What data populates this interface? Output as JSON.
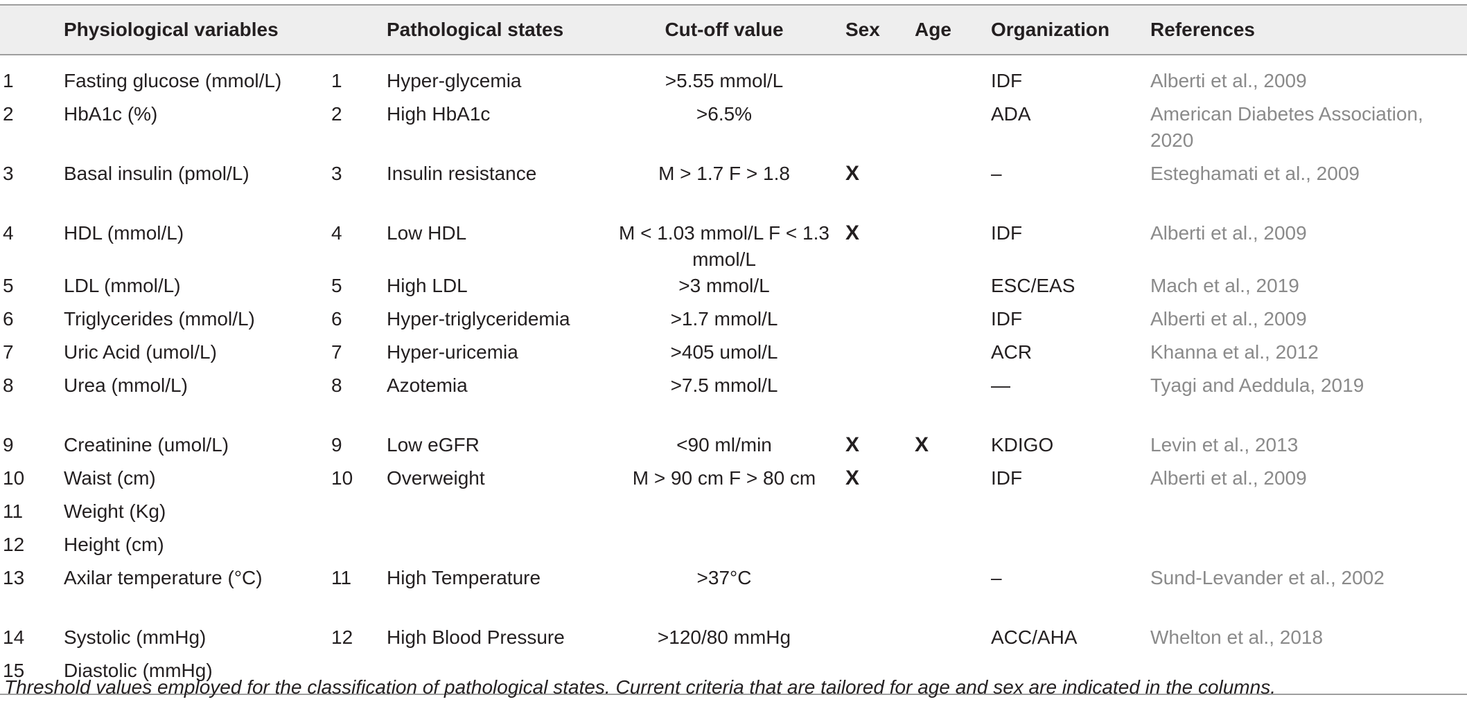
{
  "headers": [
    "",
    "Physiological variables",
    "",
    "Pathological states",
    "Cut-off value",
    "Sex",
    "Age",
    "Organization",
    "References"
  ],
  "rows": [
    {
      "vnum": "1",
      "variable": "Fasting glucose (mmol/L)",
      "snum": "1",
      "state": "Hyper-glycemia",
      "cutoff": ">5.55 mmol/L",
      "sex": "",
      "age": "",
      "org": "IDF",
      "ref": "Alberti et al., 2009"
    },
    {
      "vnum": "2",
      "variable": "HbA1c (%)",
      "snum": "2",
      "state": "High HbA1c",
      "cutoff": ">6.5%",
      "sex": "",
      "age": "",
      "org": "ADA",
      "ref": "American Diabetes Association, 2020"
    },
    {
      "vnum": "3",
      "variable": "Basal insulin (pmol/L)",
      "snum": "3",
      "state": "Insulin resistance",
      "cutoff": "M > 1.7 F > 1.8",
      "sex": "X",
      "age": "",
      "org": "–",
      "ref": "Esteghamati et al., 2009"
    },
    {
      "vnum": "4",
      "variable": "HDL (mmol/L)",
      "snum": "4",
      "state": "Low HDL",
      "cutoff": "M < 1.03 mmol/L F < 1.3 mmol/L",
      "sex": "X",
      "age": "",
      "org": "IDF",
      "ref": "Alberti et al., 2009"
    },
    {
      "vnum": "5",
      "variable": "LDL (mmol/L)",
      "snum": "5",
      "state": "High LDL",
      "cutoff": ">3 mmol/L",
      "sex": "",
      "age": "",
      "org": "ESC/EAS",
      "ref": "Mach et al., 2019"
    },
    {
      "vnum": "6",
      "variable": "Triglycerides (mmol/L)",
      "snum": "6",
      "state": "Hyper-triglyceridemia",
      "cutoff": ">1.7 mmol/L",
      "sex": "",
      "age": "",
      "org": "IDF",
      "ref": "Alberti et al., 2009"
    },
    {
      "vnum": "7",
      "variable": "Uric Acid (umol/L)",
      "snum": "7",
      "state": "Hyper-uricemia",
      "cutoff": ">405 umol/L",
      "sex": "",
      "age": "",
      "org": "ACR",
      "ref": "Khanna et al., 2012"
    },
    {
      "vnum": "8",
      "variable": "Urea (mmol/L)",
      "snum": "8",
      "state": "Azotemia",
      "cutoff": ">7.5 mmol/L",
      "sex": "",
      "age": "",
      "org": "—",
      "ref": "Tyagi and Aeddula, 2019"
    },
    {
      "vnum": "9",
      "variable": "Creatinine (umol/L)",
      "snum": "9",
      "state": "Low eGFR",
      "cutoff": "<90 ml/min",
      "sex": "X",
      "age": "X",
      "org": "KDIGO",
      "ref": "Levin et al., 2013"
    },
    {
      "vnum": "10",
      "variable": "Waist (cm)",
      "snum": "10",
      "state": "Overweight",
      "cutoff": "M > 90 cm F > 80 cm",
      "sex": "X",
      "age": "",
      "org": "IDF",
      "ref": "Alberti et al., 2009"
    },
    {
      "vnum": "11",
      "variable": "Weight (Kg)",
      "snum": "",
      "state": "",
      "cutoff": "",
      "sex": "",
      "age": "",
      "org": "",
      "ref": ""
    },
    {
      "vnum": "12",
      "variable": "Height (cm)",
      "snum": "",
      "state": "",
      "cutoff": "",
      "sex": "",
      "age": "",
      "org": "",
      "ref": ""
    },
    {
      "vnum": "13",
      "variable": "Axilar temperature (°C)",
      "snum": "11",
      "state": "High Temperature",
      "cutoff": ">37°C",
      "sex": "",
      "age": "",
      "org": "–",
      "ref": "Sund-Levander et al., 2002"
    },
    {
      "vnum": "14",
      "variable": "Systolic (mmHg)",
      "snum": "12",
      "state": "High Blood Pressure",
      "cutoff": ">120/80 mmHg",
      "sex": "",
      "age": "",
      "org": "ACC/AHA",
      "ref": "Whelton et al., 2018"
    },
    {
      "vnum": "15",
      "variable": "Diastolic (mmHg)",
      "snum": "",
      "state": "",
      "cutoff": "",
      "sex": "",
      "age": "",
      "org": "",
      "ref": ""
    }
  ],
  "caption": "Threshold values employed for the classification of pathological states. Current criteria that are tailored for age and sex are indicated in the columns."
}
